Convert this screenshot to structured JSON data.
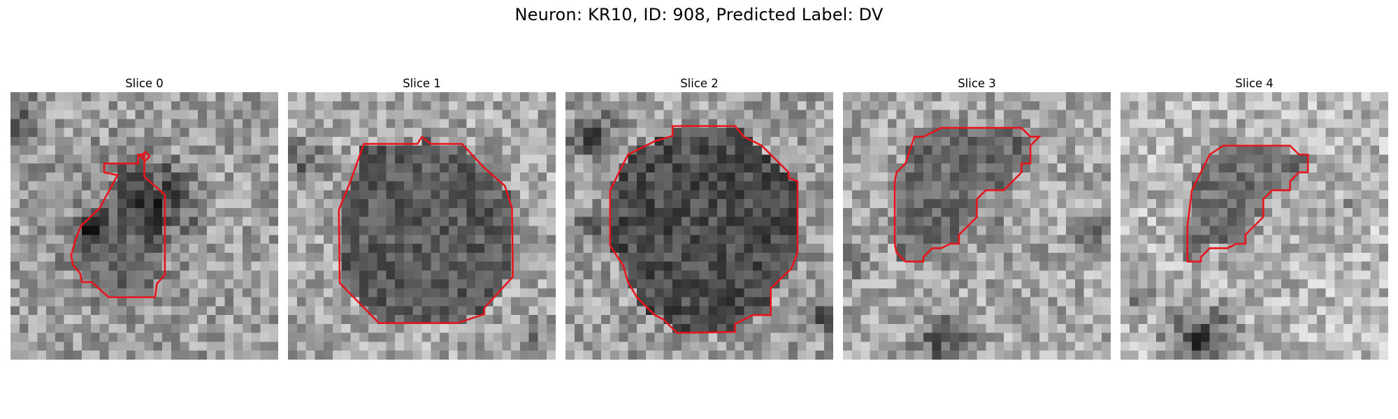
{
  "figure": {
    "title": "Neuron: KR10, ID: 908, Predicted Label: DV"
  },
  "colors": {
    "outline": "#e8141c",
    "background": "#ffffff"
  },
  "panels": [
    {
      "title": "Slice 0"
    },
    {
      "title": "Slice 1"
    },
    {
      "title": "Slice 2"
    },
    {
      "title": "Slice 3"
    },
    {
      "title": "Slice 4"
    }
  ]
}
